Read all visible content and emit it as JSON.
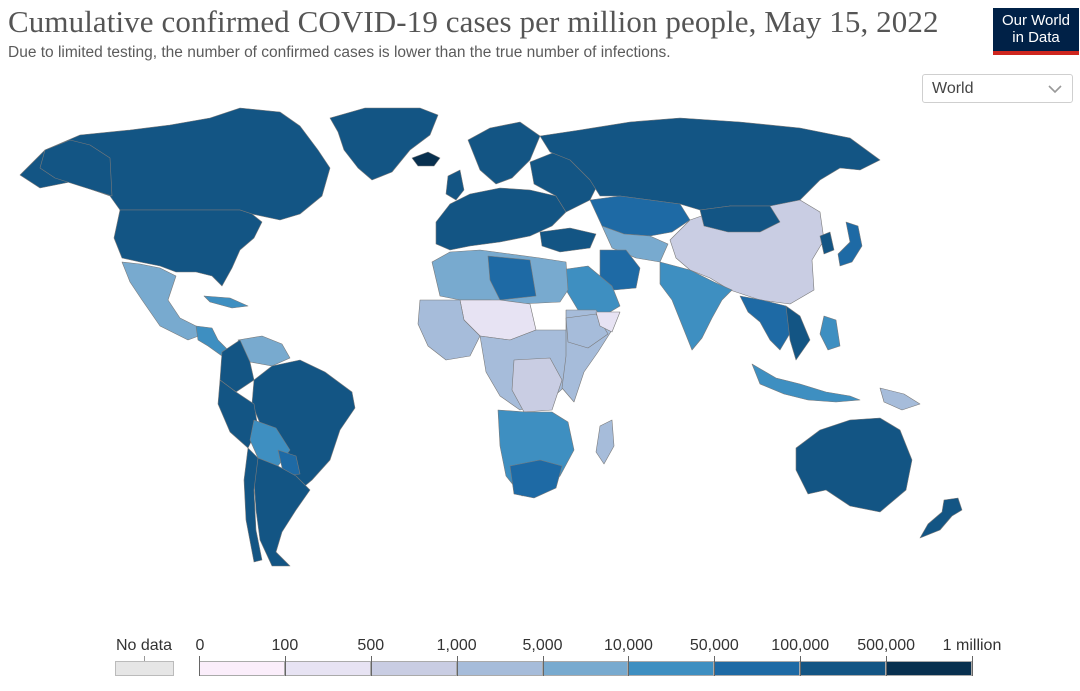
{
  "header": {
    "title": "Cumulative confirmed COVID-19 cases per million people, May 15, 2022",
    "subtitle": "Due to limited testing, the number of confirmed cases is lower than the true number of infections."
  },
  "logo": {
    "line1": "Our World",
    "line2": "in Data",
    "background": "#002147",
    "accent": "#ce261e"
  },
  "region_selector": {
    "selected": "World",
    "icon": "chevron-down-icon"
  },
  "legend": {
    "no_data_label": "No data",
    "no_data_color": "#e6e6e6",
    "breaks": [
      "0",
      "100",
      "500",
      "1,000",
      "5,000",
      "10,000",
      "50,000",
      "100,000",
      "500,000",
      "1 million"
    ],
    "colors": [
      "#fbeefb",
      "#e7e3f3",
      "#c9cde3",
      "#a6bcda",
      "#78aacf",
      "#3e8fc1",
      "#1e6aa5",
      "#135584",
      "#08304f"
    ]
  },
  "map_colors": {
    "ocean": "#ffffff",
    "border": "#7a7a7a",
    "very_high": "#135584",
    "high": "#1e6aa5",
    "mid_high": "#3e8fc1",
    "mid": "#78aacf",
    "low_mid": "#a6bcda",
    "low": "#c9cde3",
    "very_low": "#e7e3f3",
    "no_data": "#e6e6e6"
  }
}
